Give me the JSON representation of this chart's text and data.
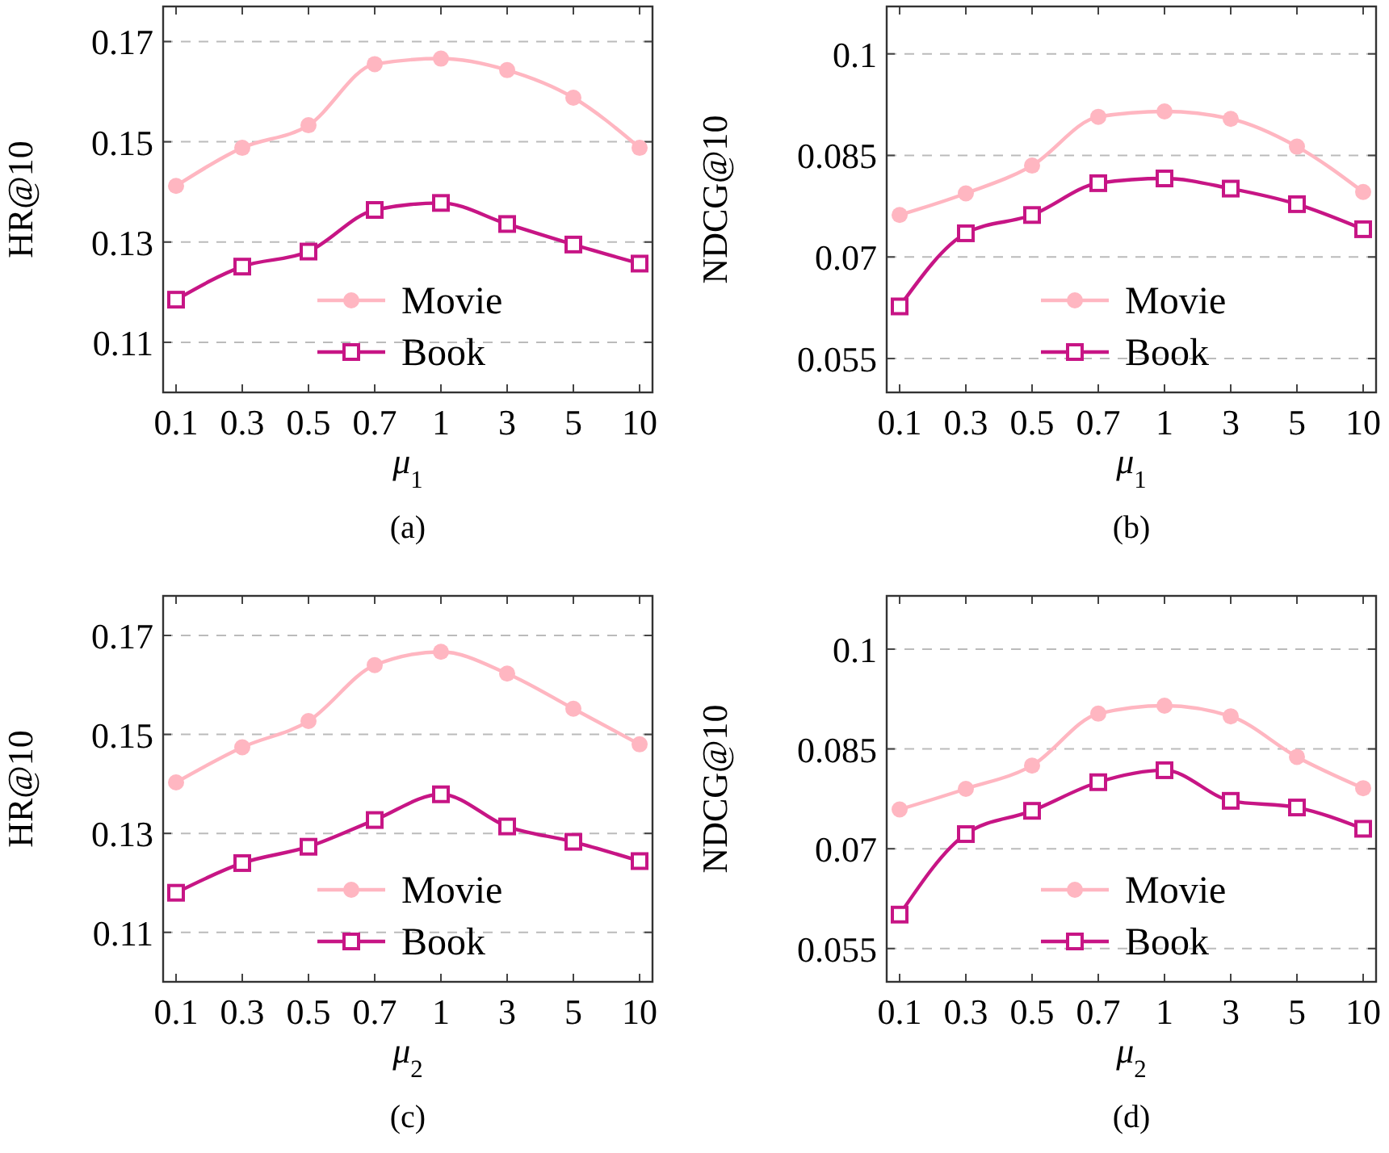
{
  "chart_data": [
    {
      "type": "line",
      "title": "(a)",
      "xlabel": "μ$_{1}$",
      "ylabel": "HR@10",
      "categories": [
        "0.1",
        "0.3",
        "0.5",
        "0.7",
        "1",
        "3",
        "5",
        "10"
      ],
      "ylim": [
        0.1,
        0.177
      ],
      "yticks": [
        0.11,
        0.13,
        0.15,
        0.17
      ],
      "grid": "y",
      "legend": "bottom",
      "line_style": "solid",
      "series": [
        {
          "name": "Movie",
          "color": "#ffb6c1",
          "marker": "circle",
          "values": [
            0.1412,
            0.1488,
            0.1533,
            0.1655,
            0.1666,
            0.1643,
            0.1588,
            0.1488
          ]
        },
        {
          "name": "Book",
          "color": "#c71585",
          "marker": "square",
          "values": [
            0.1185,
            0.1251,
            0.1281,
            0.1364,
            0.1378,
            0.1336,
            0.1295,
            0.1257
          ]
        }
      ]
    },
    {
      "type": "line",
      "title": "(b)",
      "xlabel": "μ$_{1}$",
      "ylabel": "NDCG@10",
      "categories": [
        "0.1",
        "0.3",
        "0.5",
        "0.7",
        "1",
        "3",
        "5",
        "10"
      ],
      "ylim": [
        0.05,
        0.107
      ],
      "yticks": [
        0.055,
        0.07,
        0.085,
        0.1
      ],
      "grid": "y",
      "legend": "bottom",
      "line_style": "solid",
      "series": [
        {
          "name": "Movie",
          "color": "#ffb6c1",
          "marker": "circle",
          "values": [
            0.0762,
            0.0794,
            0.0835,
            0.0907,
            0.0915,
            0.0904,
            0.0863,
            0.0796
          ]
        },
        {
          "name": "Book",
          "color": "#c71585",
          "marker": "square",
          "values": [
            0.0627,
            0.0735,
            0.0762,
            0.0809,
            0.0816,
            0.0801,
            0.0778,
            0.0741
          ]
        }
      ]
    },
    {
      "type": "line",
      "title": "(c)",
      "xlabel": "μ$_{2}$",
      "ylabel": "HR@10",
      "categories": [
        "0.1",
        "0.3",
        "0.5",
        "0.7",
        "1",
        "3",
        "5",
        "10"
      ],
      "ylim": [
        0.1,
        0.178
      ],
      "yticks": [
        0.11,
        0.13,
        0.15,
        0.17
      ],
      "grid": "y",
      "legend": "bottom",
      "line_style": "solid",
      "series": [
        {
          "name": "Movie",
          "color": "#ffb6c1",
          "marker": "circle",
          "values": [
            0.1403,
            0.1474,
            0.1527,
            0.164,
            0.1667,
            0.1623,
            0.1552,
            0.148
          ]
        },
        {
          "name": "Book",
          "color": "#c71585",
          "marker": "square",
          "values": [
            0.118,
            0.124,
            0.1273,
            0.1327,
            0.1379,
            0.1314,
            0.1283,
            0.1244
          ]
        }
      ]
    },
    {
      "type": "line",
      "title": "(d)",
      "xlabel": "μ$_{2}$",
      "ylabel": "NDCG@10",
      "categories": [
        "0.1",
        "0.3",
        "0.5",
        "0.7",
        "1",
        "3",
        "5",
        "10"
      ],
      "ylim": [
        0.05,
        0.108
      ],
      "yticks": [
        0.055,
        0.07,
        0.085,
        0.1
      ],
      "grid": "y",
      "legend": "bottom",
      "line_style": "solid",
      "series": [
        {
          "name": "Movie",
          "color": "#ffb6c1",
          "marker": "circle",
          "values": [
            0.0759,
            0.079,
            0.0825,
            0.0903,
            0.0915,
            0.0899,
            0.0838,
            0.0791
          ]
        },
        {
          "name": "Book",
          "color": "#c71585",
          "marker": "square",
          "values": [
            0.0601,
            0.0722,
            0.0757,
            0.08,
            0.0818,
            0.0772,
            0.0762,
            0.073
          ]
        }
      ]
    }
  ]
}
